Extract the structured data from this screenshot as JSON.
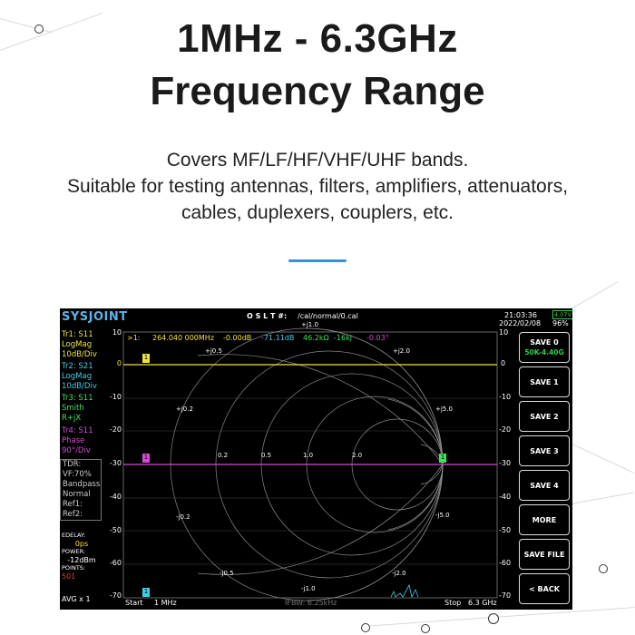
{
  "headline": {
    "line1": "1MHz - 6.3GHz",
    "line2": "Frequency Range"
  },
  "description": {
    "line1": "Covers MF/LF/HF/VHF/UHF bands.",
    "line2": "Suitable for testing antennas, filters, amplifiers, attenuators,",
    "line3": "cables, duplexers, couplers, etc."
  },
  "colors": {
    "accent": "#3b8fd8",
    "trace1": "#f2e33a",
    "trace2": "#3fd0e8",
    "trace3": "#3fe35a",
    "trace4": "#d44bd6",
    "brand": "#5ab4e8"
  },
  "device": {
    "brand": "SYSJOINT",
    "cal_label": "O S L T #:",
    "cal_file": "/cal/normal/0.cal",
    "time": "21:03:36",
    "date": "2022/02/08",
    "battery_pct": "96%",
    "battery_voltage": "4.07V",
    "marker_readout": {
      "marker": ">1:",
      "freq": "264.040 000MHz",
      "db1": "-0.00dB",
      "db2": "-71.11dB",
      "impedance": "46.2kΩ",
      "reactance": "-16kj",
      "phase": "-0.03°"
    },
    "traces": [
      {
        "name": "Tr1:  S11",
        "format": "LogMag",
        "scale": "10dB/Div"
      },
      {
        "name": "Tr2:  S21",
        "format": "LogMag",
        "scale": "10dB/Div"
      },
      {
        "name": "Tr3:  S11",
        "format": "Smith",
        "scale": "R+jX"
      },
      {
        "name": "Tr4:  S11",
        "format": "Phase",
        "scale": "90°/Div"
      }
    ],
    "info_lines": [
      "TDR:",
      "VF:70%",
      "Bandpass",
      "Normal",
      "Ref1:",
      "Ref2:"
    ],
    "edelay_label": "EDELAY:",
    "edelay_value": "0ps",
    "power_label": "POWER:",
    "power_value": "-12dBm",
    "points_label": "POINTS:",
    "points_value": "501",
    "avg": "AVG x 1",
    "y_ticks": [
      "10",
      "0",
      "-10",
      "-20",
      "-30",
      "-40",
      "-50",
      "-60",
      "-70"
    ],
    "y_ticks_right": [
      "10",
      "0",
      "-10",
      "-20",
      "-30",
      "-40",
      "-50",
      "-60",
      "-70"
    ],
    "start_label": "Start",
    "start_value": "1 MHz",
    "ifbw": "IFBW: 6.25kHz",
    "stop_label": "Stop",
    "stop_value": "6.3 GHz",
    "smith_labels": {
      "top": "+j1.0",
      "bottom": "-j1.0",
      "pj2": "+j2.0",
      "pj05": "+j0.5",
      "pj02": "+j0.2",
      "pj5": "+j5.0",
      "mj2": "-j2.0",
      "mj05": "-j0.5",
      "mj02": "-j0.2",
      "mj5": "-j5.0",
      "r02": "0.2",
      "r05": "0.5",
      "r1": "1.0",
      "r2": "2.0"
    },
    "side_buttons": [
      {
        "label": "SAVE 0",
        "sub": "50K-4.40G"
      },
      {
        "label": "SAVE 1",
        "sub": ""
      },
      {
        "label": "SAVE 2",
        "sub": ""
      },
      {
        "label": "SAVE 3",
        "sub": ""
      },
      {
        "label": "SAVE 4",
        "sub": ""
      },
      {
        "label": "MORE",
        "sub": ""
      },
      {
        "label": "SAVE FILE",
        "sub": ""
      },
      {
        "label": "< BACK",
        "sub": ""
      }
    ]
  }
}
